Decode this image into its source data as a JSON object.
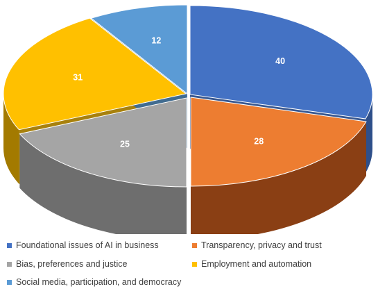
{
  "chart_data": {
    "type": "pie",
    "title": "",
    "style": "3d-exploded-perspective",
    "categories": [
      "Foundational issues of AI in business",
      "Transparency, privacy and trust",
      "Bias, preferences and justice",
      "Employment and automation",
      "Social media, participation, and democracy"
    ],
    "values": [
      40,
      28,
      25,
      31,
      12
    ],
    "data_labels": [
      "40",
      "28",
      "25",
      "31",
      "12"
    ],
    "colors": [
      "#4472C4",
      "#ED7D31",
      "#A5A5A5",
      "#FFC000",
      "#5B9BD5"
    ],
    "side_colors": [
      "#2E4F8A",
      "#8A3F14",
      "#6E6E6E",
      "#A37A00",
      "#3C6C98"
    ],
    "legend_position": "bottom"
  }
}
